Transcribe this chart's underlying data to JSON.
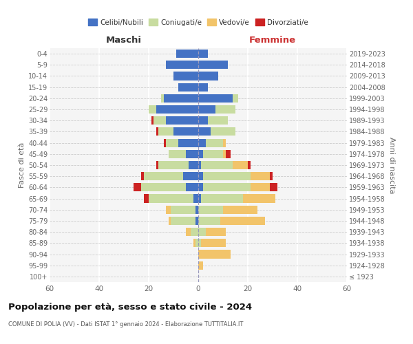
{
  "age_groups": [
    "100+",
    "95-99",
    "90-94",
    "85-89",
    "80-84",
    "75-79",
    "70-74",
    "65-69",
    "60-64",
    "55-59",
    "50-54",
    "45-49",
    "40-44",
    "35-39",
    "30-34",
    "25-29",
    "20-24",
    "15-19",
    "10-14",
    "5-9",
    "0-4"
  ],
  "birth_years": [
    "≤ 1923",
    "1924-1928",
    "1929-1933",
    "1934-1938",
    "1939-1943",
    "1944-1948",
    "1949-1953",
    "1954-1958",
    "1959-1963",
    "1964-1968",
    "1969-1973",
    "1974-1978",
    "1979-1983",
    "1984-1988",
    "1989-1993",
    "1994-1998",
    "1999-2003",
    "2004-2008",
    "2009-2013",
    "2014-2018",
    "2019-2023"
  ],
  "maschi": {
    "celibi": [
      0,
      0,
      0,
      0,
      0,
      1,
      1,
      2,
      5,
      6,
      4,
      5,
      8,
      10,
      13,
      17,
      14,
      8,
      10,
      13,
      9
    ],
    "coniugati": [
      0,
      0,
      0,
      1,
      3,
      10,
      10,
      18,
      18,
      16,
      12,
      7,
      5,
      6,
      5,
      3,
      1,
      0,
      0,
      0,
      0
    ],
    "vedovi": [
      0,
      0,
      0,
      1,
      2,
      1,
      2,
      0,
      0,
      0,
      0,
      0,
      0,
      0,
      0,
      0,
      0,
      0,
      0,
      0,
      0
    ],
    "divorziati": [
      0,
      0,
      0,
      0,
      0,
      0,
      0,
      2,
      3,
      1,
      1,
      0,
      1,
      1,
      1,
      0,
      0,
      0,
      0,
      0,
      0
    ]
  },
  "femmine": {
    "nubili": [
      0,
      0,
      0,
      0,
      0,
      0,
      0,
      1,
      2,
      2,
      1,
      2,
      3,
      5,
      4,
      7,
      14,
      4,
      8,
      12,
      4
    ],
    "coniugate": [
      0,
      0,
      0,
      1,
      3,
      9,
      10,
      17,
      19,
      19,
      13,
      8,
      7,
      10,
      8,
      8,
      2,
      0,
      0,
      0,
      0
    ],
    "vedove": [
      0,
      2,
      13,
      10,
      8,
      18,
      14,
      13,
      8,
      8,
      6,
      1,
      1,
      0,
      0,
      0,
      0,
      0,
      0,
      0,
      0
    ],
    "divorziate": [
      0,
      0,
      0,
      0,
      0,
      0,
      0,
      0,
      3,
      1,
      1,
      2,
      0,
      0,
      0,
      0,
      0,
      0,
      0,
      0,
      0
    ]
  },
  "colors": {
    "celibi_nubili": "#4472C4",
    "coniugati": "#c8dca0",
    "vedovi": "#f2c46a",
    "divorziati": "#cc2222"
  },
  "xlim": 60,
  "title1": "Popolazione per età, sesso e stato civile - 2024",
  "title2": "COMUNE DI POLIA (VV) - Dati ISTAT 1° gennaio 2024 - Elaborazione TUTTITALIA.IT",
  "ylabel_left": "Fasce di età",
  "ylabel_right": "Anni di nascita",
  "xlabel_left": "Maschi",
  "xlabel_right": "Femmine",
  "legend_labels": [
    "Celibi/Nubili",
    "Coniugati/e",
    "Vedovi/e",
    "Divorziati/e"
  ],
  "background_color": "#f5f5f5"
}
